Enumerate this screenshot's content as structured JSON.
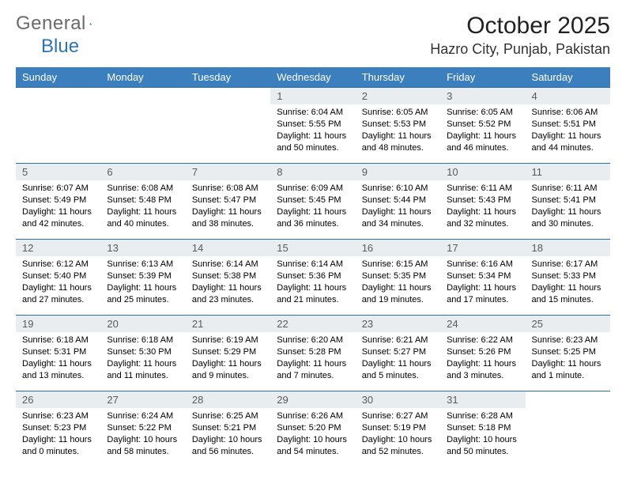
{
  "logo": {
    "general": "General",
    "blue": "Blue"
  },
  "title": {
    "month": "October 2025",
    "location": "Hazro City, Punjab, Pakistan"
  },
  "colors": {
    "header_bg": "#3b7fbf",
    "header_text": "#ffffff",
    "daynum_bg": "#e9edef",
    "daynum_text": "#5a5a5a",
    "cell_border": "#2e6ea8",
    "body_text": "#000000",
    "logo_gray": "#6a6a6a",
    "logo_blue": "#2f74b5"
  },
  "weekdays": [
    "Sunday",
    "Monday",
    "Tuesday",
    "Wednesday",
    "Thursday",
    "Friday",
    "Saturday"
  ],
  "weeks": [
    [
      null,
      null,
      null,
      {
        "n": "1",
        "sr": "6:04 AM",
        "ss": "5:55 PM",
        "dl": "11 hours and 50 minutes."
      },
      {
        "n": "2",
        "sr": "6:05 AM",
        "ss": "5:53 PM",
        "dl": "11 hours and 48 minutes."
      },
      {
        "n": "3",
        "sr": "6:05 AM",
        "ss": "5:52 PM",
        "dl": "11 hours and 46 minutes."
      },
      {
        "n": "4",
        "sr": "6:06 AM",
        "ss": "5:51 PM",
        "dl": "11 hours and 44 minutes."
      }
    ],
    [
      {
        "n": "5",
        "sr": "6:07 AM",
        "ss": "5:49 PM",
        "dl": "11 hours and 42 minutes."
      },
      {
        "n": "6",
        "sr": "6:08 AM",
        "ss": "5:48 PM",
        "dl": "11 hours and 40 minutes."
      },
      {
        "n": "7",
        "sr": "6:08 AM",
        "ss": "5:47 PM",
        "dl": "11 hours and 38 minutes."
      },
      {
        "n": "8",
        "sr": "6:09 AM",
        "ss": "5:45 PM",
        "dl": "11 hours and 36 minutes."
      },
      {
        "n": "9",
        "sr": "6:10 AM",
        "ss": "5:44 PM",
        "dl": "11 hours and 34 minutes."
      },
      {
        "n": "10",
        "sr": "6:11 AM",
        "ss": "5:43 PM",
        "dl": "11 hours and 32 minutes."
      },
      {
        "n": "11",
        "sr": "6:11 AM",
        "ss": "5:41 PM",
        "dl": "11 hours and 30 minutes."
      }
    ],
    [
      {
        "n": "12",
        "sr": "6:12 AM",
        "ss": "5:40 PM",
        "dl": "11 hours and 27 minutes."
      },
      {
        "n": "13",
        "sr": "6:13 AM",
        "ss": "5:39 PM",
        "dl": "11 hours and 25 minutes."
      },
      {
        "n": "14",
        "sr": "6:14 AM",
        "ss": "5:38 PM",
        "dl": "11 hours and 23 minutes."
      },
      {
        "n": "15",
        "sr": "6:14 AM",
        "ss": "5:36 PM",
        "dl": "11 hours and 21 minutes."
      },
      {
        "n": "16",
        "sr": "6:15 AM",
        "ss": "5:35 PM",
        "dl": "11 hours and 19 minutes."
      },
      {
        "n": "17",
        "sr": "6:16 AM",
        "ss": "5:34 PM",
        "dl": "11 hours and 17 minutes."
      },
      {
        "n": "18",
        "sr": "6:17 AM",
        "ss": "5:33 PM",
        "dl": "11 hours and 15 minutes."
      }
    ],
    [
      {
        "n": "19",
        "sr": "6:18 AM",
        "ss": "5:31 PM",
        "dl": "11 hours and 13 minutes."
      },
      {
        "n": "20",
        "sr": "6:18 AM",
        "ss": "5:30 PM",
        "dl": "11 hours and 11 minutes."
      },
      {
        "n": "21",
        "sr": "6:19 AM",
        "ss": "5:29 PM",
        "dl": "11 hours and 9 minutes."
      },
      {
        "n": "22",
        "sr": "6:20 AM",
        "ss": "5:28 PM",
        "dl": "11 hours and 7 minutes."
      },
      {
        "n": "23",
        "sr": "6:21 AM",
        "ss": "5:27 PM",
        "dl": "11 hours and 5 minutes."
      },
      {
        "n": "24",
        "sr": "6:22 AM",
        "ss": "5:26 PM",
        "dl": "11 hours and 3 minutes."
      },
      {
        "n": "25",
        "sr": "6:23 AM",
        "ss": "5:25 PM",
        "dl": "11 hours and 1 minute."
      }
    ],
    [
      {
        "n": "26",
        "sr": "6:23 AM",
        "ss": "5:23 PM",
        "dl": "11 hours and 0 minutes."
      },
      {
        "n": "27",
        "sr": "6:24 AM",
        "ss": "5:22 PM",
        "dl": "10 hours and 58 minutes."
      },
      {
        "n": "28",
        "sr": "6:25 AM",
        "ss": "5:21 PM",
        "dl": "10 hours and 56 minutes."
      },
      {
        "n": "29",
        "sr": "6:26 AM",
        "ss": "5:20 PM",
        "dl": "10 hours and 54 minutes."
      },
      {
        "n": "30",
        "sr": "6:27 AM",
        "ss": "5:19 PM",
        "dl": "10 hours and 52 minutes."
      },
      {
        "n": "31",
        "sr": "6:28 AM",
        "ss": "5:18 PM",
        "dl": "10 hours and 50 minutes."
      },
      null
    ]
  ],
  "labels": {
    "sunrise": "Sunrise: ",
    "sunset": "Sunset: ",
    "daylight": "Daylight: "
  }
}
